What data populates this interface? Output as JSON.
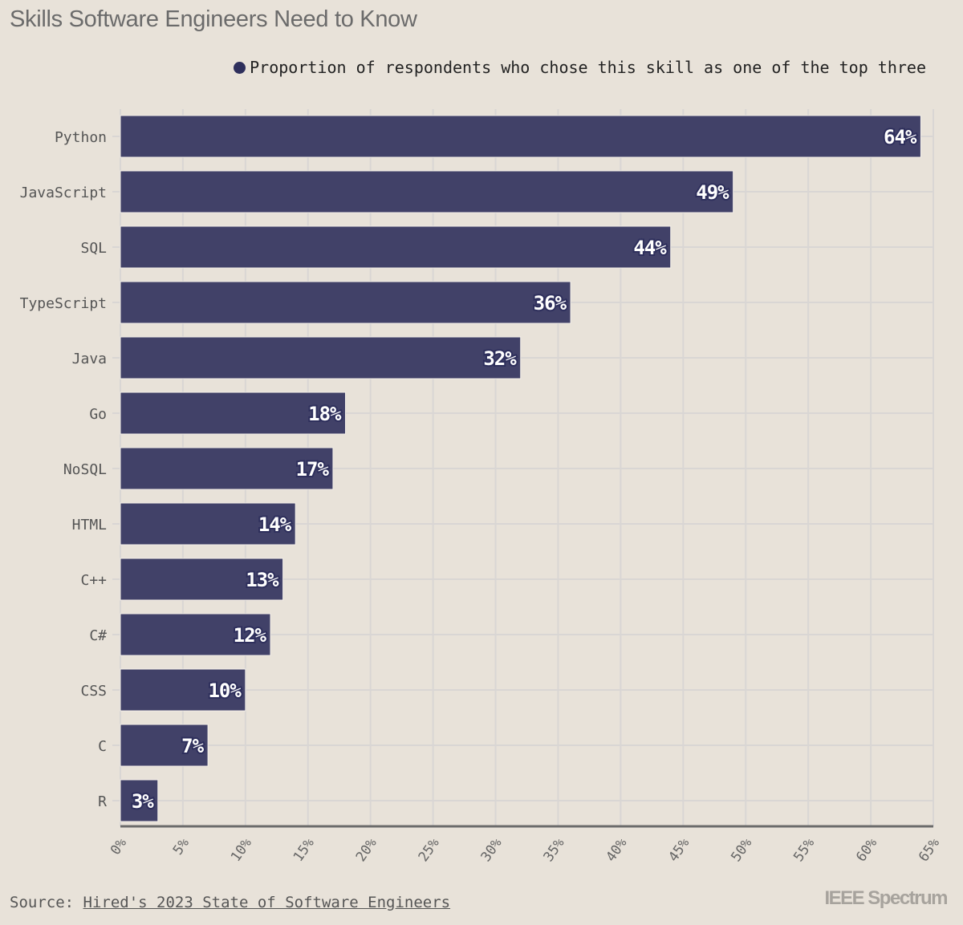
{
  "chart_data": {
    "type": "bar",
    "orientation": "horizontal",
    "title": "Skills Software Engineers Need to Know",
    "legend": "Proportion of respondents who chose this skill as one of the top three",
    "legend_position": "top-right",
    "categories": [
      "Python",
      "JavaScript",
      "SQL",
      "TypeScript",
      "Java",
      "Go",
      "NoSQL",
      "HTML",
      "C++",
      "C#",
      "CSS",
      "C",
      "R"
    ],
    "values": [
      64,
      49,
      44,
      36,
      32,
      18,
      17,
      14,
      13,
      12,
      10,
      7,
      3
    ],
    "data_labels": [
      "64%",
      "49%",
      "44%",
      "36%",
      "32%",
      "18%",
      "17%",
      "14%",
      "13%",
      "12%",
      "10%",
      "7%",
      "3%"
    ],
    "xlim": [
      0,
      65
    ],
    "xticks": [
      "0%",
      "5%",
      "10%",
      "15%",
      "20%",
      "25%",
      "30%",
      "35%",
      "40%",
      "45%",
      "50%",
      "55%",
      "60%",
      "65%"
    ],
    "grid": true,
    "colors": {
      "bar": "#414168",
      "background": "#e8e2d9"
    }
  },
  "footer": {
    "source_label": "Source:",
    "source_link": "Hired's 2023 State of Software Engineers",
    "brand": "IEEE Spectrum"
  }
}
